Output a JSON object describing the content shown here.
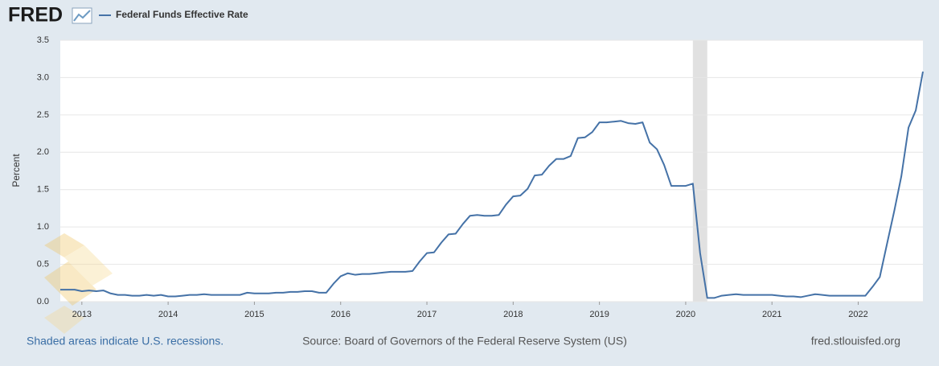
{
  "chart_data": {
    "type": "line",
    "logo": "FRED",
    "y_label": "Percent",
    "footer_left": "Shaded areas indicate U.S. recessions.",
    "source": "Source: Board of Governors of the Federal Reserve System (US)",
    "site": "fred.stlouisfed.org",
    "xlim": [
      2012.75,
      2022.75
    ],
    "xticks": [
      2013,
      2014,
      2015,
      2016,
      2017,
      2018,
      2019,
      2020,
      2021,
      2022
    ],
    "ylim": [
      0,
      3.5
    ],
    "yticks": [
      {
        "value": 0,
        "label": "0.0"
      },
      0.5,
      {
        "value": 1,
        "label": "1.0"
      },
      1.5,
      {
        "value": 2,
        "label": "2.0"
      },
      2.5,
      {
        "value": 3,
        "label": "3.0"
      },
      3.5
    ],
    "grid": true,
    "recessions": [
      {
        "start": 2020.083,
        "end": 2020.25
      }
    ],
    "recession_color": "#e1e1e1",
    "x": [
      2012.75,
      2012.833,
      2012.917,
      2013,
      2013.083,
      2013.167,
      2013.25,
      2013.333,
      2013.417,
      2013.5,
      2013.583,
      2013.667,
      2013.75,
      2013.833,
      2013.917,
      2014,
      2014.083,
      2014.167,
      2014.25,
      2014.333,
      2014.417,
      2014.5,
      2014.583,
      2014.667,
      2014.75,
      2014.833,
      2014.917,
      2015,
      2015.083,
      2015.167,
      2015.25,
      2015.333,
      2015.417,
      2015.5,
      2015.583,
      2015.667,
      2015.75,
      2015.833,
      2015.917,
      2016,
      2016.083,
      2016.167,
      2016.25,
      2016.333,
      2016.417,
      2016.5,
      2016.583,
      2016.667,
      2016.75,
      2016.833,
      2016.917,
      2017,
      2017.083,
      2017.167,
      2017.25,
      2017.333,
      2017.417,
      2017.5,
      2017.583,
      2017.667,
      2017.75,
      2017.833,
      2017.917,
      2018,
      2018.083,
      2018.167,
      2018.25,
      2018.333,
      2018.417,
      2018.5,
      2018.583,
      2018.667,
      2018.75,
      2018.833,
      2018.917,
      2019,
      2019.083,
      2019.167,
      2019.25,
      2019.333,
      2019.417,
      2019.5,
      2019.583,
      2019.667,
      2019.75,
      2019.833,
      2019.917,
      2020,
      2020.083,
      2020.167,
      2020.25,
      2020.333,
      2020.417,
      2020.5,
      2020.583,
      2020.667,
      2020.75,
      2020.833,
      2020.917,
      2021,
      2021.083,
      2021.167,
      2021.25,
      2021.333,
      2021.417,
      2021.5,
      2021.583,
      2021.667,
      2021.75,
      2021.833,
      2021.917,
      2022,
      2022.083,
      2022.167,
      2022.25,
      2022.333,
      2022.417,
      2022.5,
      2022.583,
      2022.667,
      2022.75
    ],
    "series": [
      {
        "name": "Federal Funds Effective Rate",
        "color": "#4572a7",
        "values": [
          0.16,
          0.16,
          0.16,
          0.14,
          0.15,
          0.14,
          0.15,
          0.11,
          0.09,
          0.09,
          0.08,
          0.08,
          0.09,
          0.08,
          0.09,
          0.07,
          0.07,
          0.08,
          0.09,
          0.09,
          0.1,
          0.09,
          0.09,
          0.09,
          0.09,
          0.09,
          0.12,
          0.11,
          0.11,
          0.11,
          0.12,
          0.12,
          0.13,
          0.13,
          0.14,
          0.14,
          0.12,
          0.12,
          0.24,
          0.34,
          0.38,
          0.36,
          0.37,
          0.37,
          0.38,
          0.39,
          0.4,
          0.4,
          0.4,
          0.41,
          0.54,
          0.65,
          0.66,
          0.79,
          0.9,
          0.91,
          1.04,
          1.15,
          1.16,
          1.15,
          1.15,
          1.16,
          1.3,
          1.41,
          1.42,
          1.51,
          1.69,
          1.7,
          1.82,
          1.91,
          1.91,
          1.95,
          2.19,
          2.2,
          2.27,
          2.4,
          2.4,
          2.41,
          2.42,
          2.39,
          2.38,
          2.4,
          2.13,
          2.04,
          1.83,
          1.55,
          1.55,
          1.55,
          1.58,
          0.65,
          0.05,
          0.05,
          0.08,
          0.09,
          0.1,
          0.09,
          0.09,
          0.09,
          0.09,
          0.09,
          0.08,
          0.07,
          0.07,
          0.06,
          0.08,
          0.1,
          0.09,
          0.08,
          0.08,
          0.08,
          0.08,
          0.08,
          0.08,
          0.2,
          0.33,
          0.77,
          1.21,
          1.68,
          2.33,
          2.56,
          3.08
        ]
      }
    ]
  }
}
